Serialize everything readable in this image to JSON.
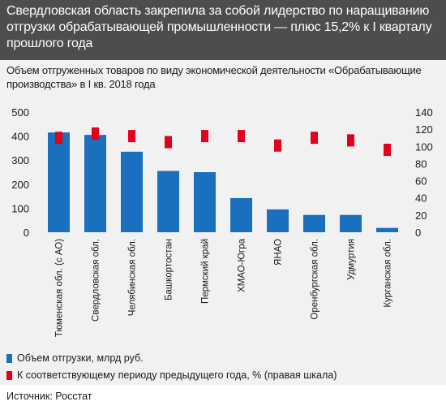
{
  "title": "Свердловская область закрепила за собой лидерство по наращиванию отгрузки обрабатывающей промышленности — плюс 15,2% к I кварталу прошлого года",
  "subtitle": "Объем отгруженных товаров по виду экономической деятельности «Обрабатывающие производства» в I кв. 2018 года",
  "source": "Источник: Росстат",
  "colors": {
    "bar": "#1a6fbe",
    "marker": "#e3001b",
    "header_bg": "#4d4d4d",
    "plot_bg": "#f1f1f2"
  },
  "chart_data": {
    "type": "bar",
    "categories": [
      "Тюменская обл. (с АО)",
      "Свердловская обл.",
      "Челябинская обл.",
      "Башкортостан",
      "Пермский край",
      "ХМАО-Югра",
      "ЯНАО",
      "Оренбургская обл.",
      "Удмуртия",
      "Курганская обл."
    ],
    "series": [
      {
        "name": "Объем отгрузки, млрд руб.",
        "axis": "left",
        "mark": "bar",
        "values": [
          415,
          405,
          335,
          255,
          250,
          142,
          95,
          72,
          72,
          18
        ]
      },
      {
        "name": "К соответствующему периоду предыдущего года, % (правая шкала)",
        "axis": "right",
        "mark": "square",
        "values": [
          110,
          115,
          112,
          105,
          112,
          112,
          101,
          110,
          107,
          96
        ]
      }
    ],
    "y_left": {
      "min": 0,
      "max": 500,
      "ticks": [
        0,
        100,
        200,
        300,
        400,
        500
      ]
    },
    "y_right": {
      "min": 0,
      "max": 140,
      "ticks": [
        0,
        20,
        40,
        60,
        80,
        100,
        120,
        140
      ]
    },
    "grid": false,
    "legend": "bottom-left"
  }
}
